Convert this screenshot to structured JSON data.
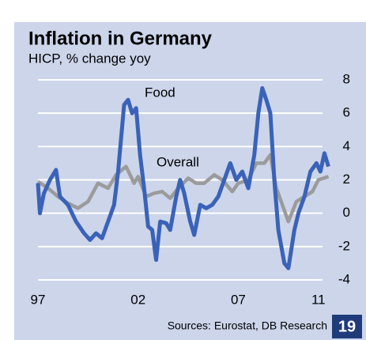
{
  "chart_data": {
    "type": "line",
    "title": "Inflation in Germany",
    "subtitle": "HICP, % change yoy",
    "source": "Sources: Eurostat, DB Research",
    "page_number": "19",
    "annotations": [
      "Food",
      "Overall"
    ],
    "xlim": [
      1997,
      2011.6
    ],
    "xticks": [
      {
        "value": 1997,
        "label": "97"
      },
      {
        "value": 2002,
        "label": "02"
      },
      {
        "value": 2007,
        "label": "07"
      },
      {
        "value": 2011,
        "label": "11"
      }
    ],
    "ylim": [
      -4,
      8
    ],
    "yticks": [
      -4,
      -2,
      0,
      2,
      4,
      6,
      8
    ],
    "grid": true,
    "series": [
      {
        "name": "Overall",
        "color": "#9b9b9b",
        "x": [
          1997,
          1997.5,
          1998,
          1998.5,
          1999,
          1999.5,
          2000,
          2000.5,
          2000.9,
          2001.4,
          2001.8,
          2002.0,
          2002.4,
          2002.8,
          2003.2,
          2003.6,
          2004.0,
          2004.5,
          2004.9,
          2005.3,
          2005.8,
          2006.2,
          2006.7,
          2007.0,
          2007.5,
          2007.9,
          2008.3,
          2008.6,
          2008.9,
          2009.2,
          2009.5,
          2009.9,
          2010.3,
          2010.7,
          2011.0,
          2011.5
        ],
        "values": [
          1.9,
          1.5,
          1.0,
          0.6,
          0.3,
          0.7,
          1.8,
          1.5,
          2.3,
          2.8,
          1.8,
          2.2,
          1.0,
          1.2,
          1.3,
          0.9,
          1.5,
          2.1,
          1.8,
          1.8,
          2.3,
          2.0,
          1.3,
          1.8,
          2.0,
          3.0,
          3.0,
          3.5,
          1.5,
          0.5,
          -0.5,
          0.7,
          1.0,
          1.3,
          2.0,
          2.2
        ]
      },
      {
        "name": "Food",
        "color": "#3a62b8",
        "x": [
          1997.0,
          1997.1,
          1997.3,
          1997.6,
          1997.9,
          1998.1,
          1998.5,
          1998.9,
          1999.3,
          1999.6,
          1999.9,
          2000.2,
          2000.5,
          2000.8,
          2001.0,
          2001.3,
          2001.5,
          2001.7,
          2001.9,
          2002.1,
          2002.3,
          2002.5,
          2002.7,
          2002.9,
          2003.1,
          2003.4,
          2003.6,
          2003.9,
          2004.1,
          2004.3,
          2004.6,
          2004.8,
          2005.1,
          2005.4,
          2005.7,
          2006.0,
          2006.3,
          2006.6,
          2006.9,
          2007.2,
          2007.5,
          2007.8,
          2008.0,
          2008.2,
          2008.4,
          2008.6,
          2008.8,
          2009.0,
          2009.3,
          2009.5,
          2009.8,
          2010.0,
          2010.3,
          2010.6,
          2010.9,
          2011.1,
          2011.3,
          2011.5
        ],
        "values": [
          1.8,
          0,
          1.2,
          2.0,
          2.6,
          1.0,
          0.5,
          -0.5,
          -1.2,
          -1.6,
          -1.2,
          -1.5,
          -0.5,
          0.5,
          2.5,
          6.5,
          6.8,
          6.0,
          6.3,
          3.5,
          1.5,
          -0.8,
          -1.0,
          -2.8,
          -0.5,
          -0.6,
          -1.0,
          1.0,
          2.0,
          1.2,
          -0.5,
          -1.3,
          0.5,
          0.3,
          0.5,
          1.0,
          2.0,
          3.0,
          2.0,
          2.5,
          1.5,
          3.5,
          6.0,
          7.5,
          6.8,
          6.0,
          2.0,
          -1.0,
          -3.0,
          -3.3,
          -1.0,
          0.0,
          1.0,
          2.5,
          3.0,
          2.5,
          3.6,
          2.8
        ]
      }
    ]
  }
}
